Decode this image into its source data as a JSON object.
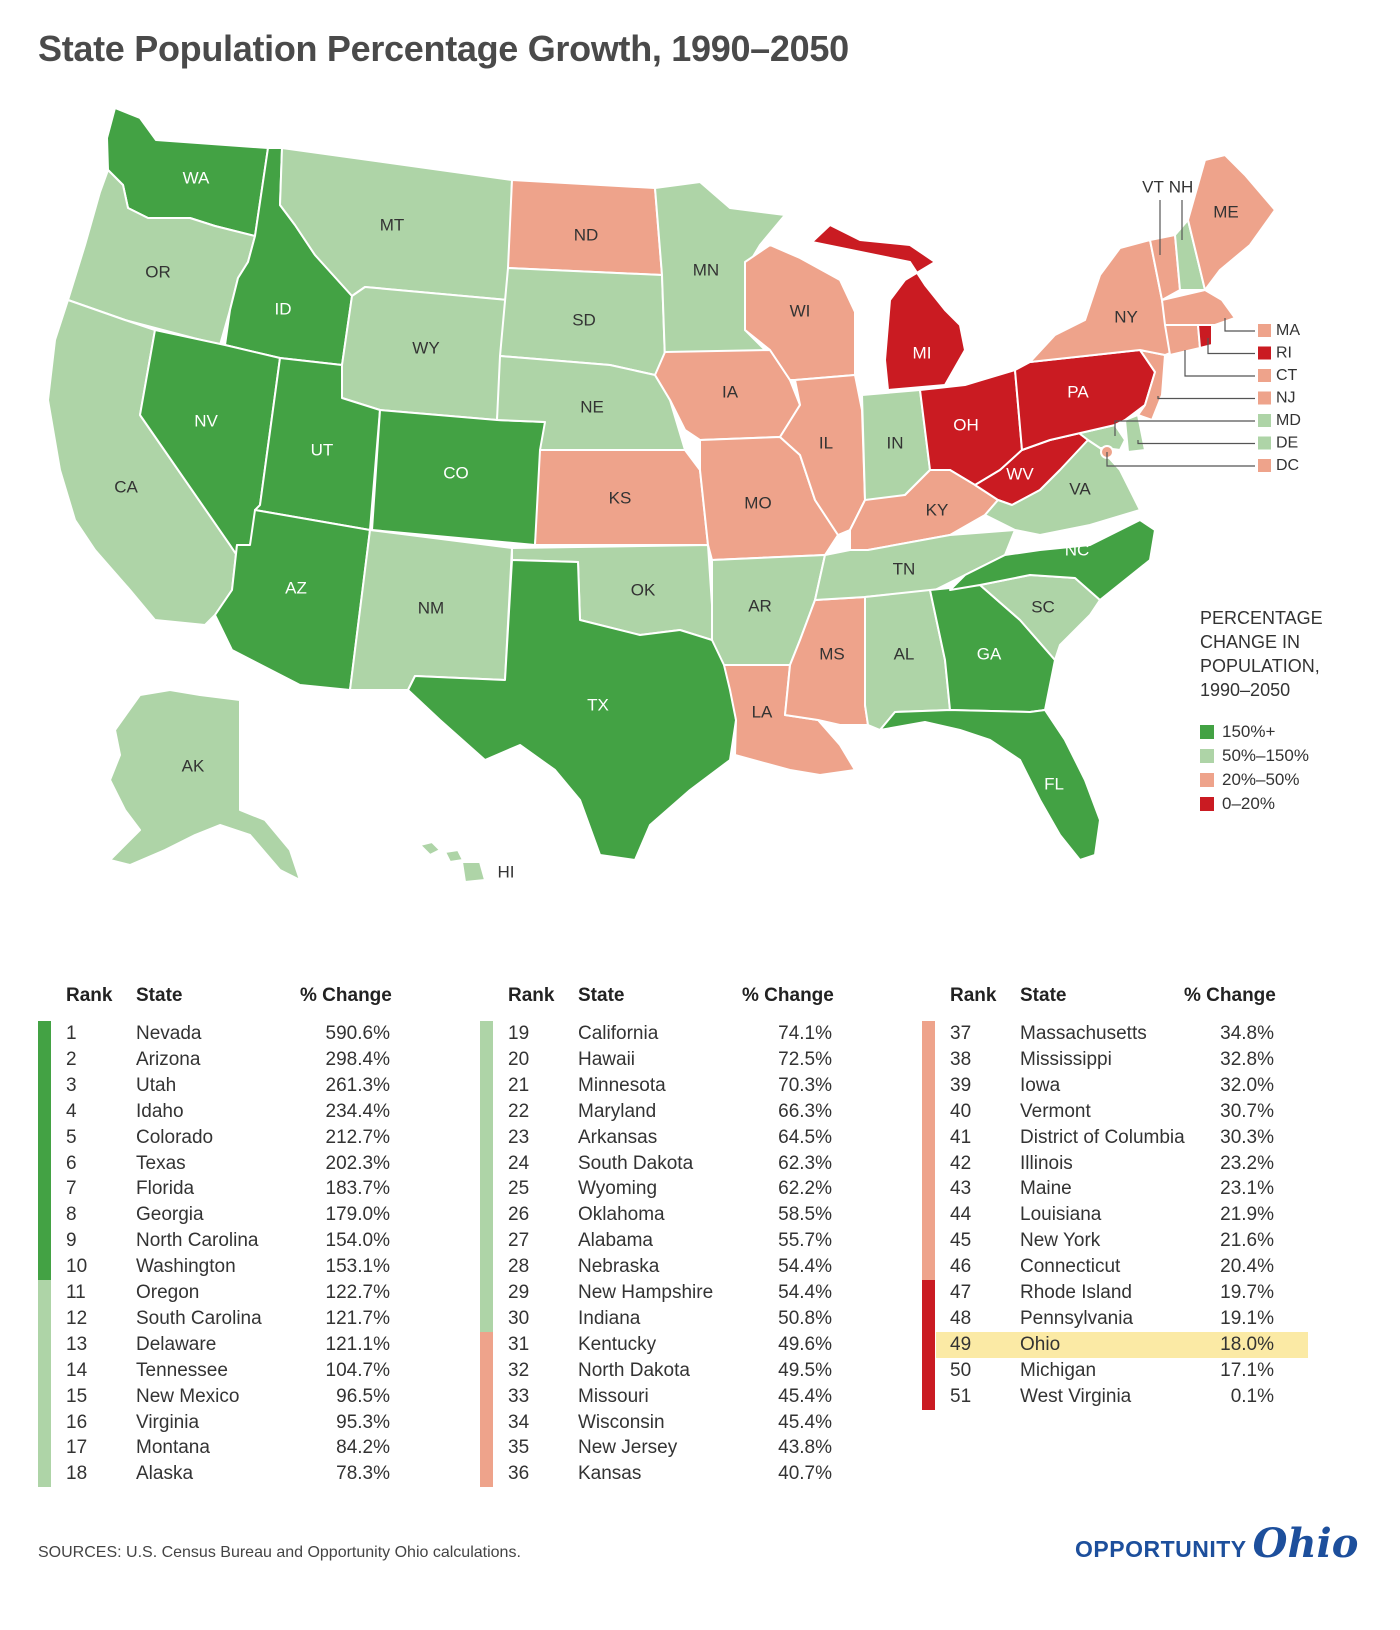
{
  "title": "State Population Percentage Growth, 1990–2050",
  "categories": {
    "c1": {
      "label": "150%+",
      "color": "#43a244"
    },
    "c2": {
      "label": "50%–150%",
      "color": "#aed4a7"
    },
    "c3": {
      "label": "20%–50%",
      "color": "#eea38b"
    },
    "c4": {
      "label": "0–20%",
      "color": "#ca1b22"
    }
  },
  "legend": {
    "title": "PERCENTAGE CHANGE IN POPULATION, 1990–2050",
    "title_lines": [
      "PERCENTAGE",
      "CHANGE IN",
      "POPULATION,",
      "1990–2050"
    ]
  },
  "map_states": [
    {
      "abbr": "WA",
      "cat": "c1"
    },
    {
      "abbr": "OR",
      "cat": "c2"
    },
    {
      "abbr": "CA",
      "cat": "c2"
    },
    {
      "abbr": "ID",
      "cat": "c1"
    },
    {
      "abbr": "NV",
      "cat": "c1"
    },
    {
      "abbr": "MT",
      "cat": "c2"
    },
    {
      "abbr": "WY",
      "cat": "c2"
    },
    {
      "abbr": "UT",
      "cat": "c1"
    },
    {
      "abbr": "AZ",
      "cat": "c1"
    },
    {
      "abbr": "CO",
      "cat": "c1"
    },
    {
      "abbr": "NM",
      "cat": "c2"
    },
    {
      "abbr": "ND",
      "cat": "c3"
    },
    {
      "abbr": "SD",
      "cat": "c2"
    },
    {
      "abbr": "NE",
      "cat": "c2"
    },
    {
      "abbr": "KS",
      "cat": "c3"
    },
    {
      "abbr": "OK",
      "cat": "c2"
    },
    {
      "abbr": "TX",
      "cat": "c1"
    },
    {
      "abbr": "MN",
      "cat": "c2"
    },
    {
      "abbr": "IA",
      "cat": "c3"
    },
    {
      "abbr": "MO",
      "cat": "c3"
    },
    {
      "abbr": "AR",
      "cat": "c2"
    },
    {
      "abbr": "LA",
      "cat": "c3"
    },
    {
      "abbr": "WI",
      "cat": "c3"
    },
    {
      "abbr": "IL",
      "cat": "c3"
    },
    {
      "abbr": "MS",
      "cat": "c3"
    },
    {
      "abbr": "MI",
      "cat": "c4"
    },
    {
      "abbr": "IN",
      "cat": "c2"
    },
    {
      "abbr": "KY",
      "cat": "c3"
    },
    {
      "abbr": "TN",
      "cat": "c2"
    },
    {
      "abbr": "AL",
      "cat": "c2"
    },
    {
      "abbr": "OH",
      "cat": "c4"
    },
    {
      "abbr": "WV",
      "cat": "c4"
    },
    {
      "abbr": "GA",
      "cat": "c1"
    },
    {
      "abbr": "FL",
      "cat": "c1"
    },
    {
      "abbr": "SC",
      "cat": "c2"
    },
    {
      "abbr": "NC",
      "cat": "c1"
    },
    {
      "abbr": "VA",
      "cat": "c2"
    },
    {
      "abbr": "PA",
      "cat": "c4"
    },
    {
      "abbr": "NY",
      "cat": "c3"
    },
    {
      "abbr": "VT",
      "cat": "c3"
    },
    {
      "abbr": "NH",
      "cat": "c2"
    },
    {
      "abbr": "ME",
      "cat": "c3"
    },
    {
      "abbr": "MA",
      "cat": "c3"
    },
    {
      "abbr": "RI",
      "cat": "c4"
    },
    {
      "abbr": "CT",
      "cat": "c3"
    },
    {
      "abbr": "NJ",
      "cat": "c3"
    },
    {
      "abbr": "MD",
      "cat": "c2"
    },
    {
      "abbr": "DE",
      "cat": "c2"
    },
    {
      "abbr": "DC",
      "cat": "c3"
    },
    {
      "abbr": "AK",
      "cat": "c2"
    },
    {
      "abbr": "HI",
      "cat": "c2"
    }
  ],
  "callouts": [
    {
      "abbr": "MA",
      "cat": "c3"
    },
    {
      "abbr": "RI",
      "cat": "c4"
    },
    {
      "abbr": "CT",
      "cat": "c3"
    },
    {
      "abbr": "NJ",
      "cat": "c3"
    },
    {
      "abbr": "MD",
      "cat": "c2"
    },
    {
      "abbr": "DE",
      "cat": "c2"
    },
    {
      "abbr": "DC",
      "cat": "c3"
    }
  ],
  "top_labels": [
    "VT",
    "NH"
  ],
  "table": {
    "headers": {
      "rank": "Rank",
      "state": "State",
      "change": "% Change"
    },
    "rows": [
      {
        "rank": "1",
        "state": "Nevada",
        "change": "590.6%",
        "cat": "c1"
      },
      {
        "rank": "2",
        "state": "Arizona",
        "change": "298.4%",
        "cat": "c1"
      },
      {
        "rank": "3",
        "state": "Utah",
        "change": "261.3%",
        "cat": "c1"
      },
      {
        "rank": "4",
        "state": "Idaho",
        "change": "234.4%",
        "cat": "c1"
      },
      {
        "rank": "5",
        "state": "Colorado",
        "change": "212.7%",
        "cat": "c1"
      },
      {
        "rank": "6",
        "state": "Texas",
        "change": "202.3%",
        "cat": "c1"
      },
      {
        "rank": "7",
        "state": "Florida",
        "change": "183.7%",
        "cat": "c1"
      },
      {
        "rank": "8",
        "state": "Georgia",
        "change": "179.0%",
        "cat": "c1"
      },
      {
        "rank": "9",
        "state": "North Carolina",
        "change": "154.0%",
        "cat": "c1"
      },
      {
        "rank": "10",
        "state": "Washington",
        "change": "153.1%",
        "cat": "c1"
      },
      {
        "rank": "11",
        "state": "Oregon",
        "change": "122.7%",
        "cat": "c2"
      },
      {
        "rank": "12",
        "state": "South Carolina",
        "change": "121.7%",
        "cat": "c2"
      },
      {
        "rank": "13",
        "state": "Delaware",
        "change": "121.1%",
        "cat": "c2"
      },
      {
        "rank": "14",
        "state": "Tennessee",
        "change": "104.7%",
        "cat": "c2"
      },
      {
        "rank": "15",
        "state": "New Mexico",
        "change": "96.5%",
        "cat": "c2"
      },
      {
        "rank": "16",
        "state": "Virginia",
        "change": "95.3%",
        "cat": "c2"
      },
      {
        "rank": "17",
        "state": "Montana",
        "change": "84.2%",
        "cat": "c2"
      },
      {
        "rank": "18",
        "state": "Alaska",
        "change": "78.3%",
        "cat": "c2"
      },
      {
        "rank": "19",
        "state": "California",
        "change": "74.1%",
        "cat": "c2"
      },
      {
        "rank": "20",
        "state": "Hawaii",
        "change": "72.5%",
        "cat": "c2"
      },
      {
        "rank": "21",
        "state": "Minnesota",
        "change": "70.3%",
        "cat": "c2"
      },
      {
        "rank": "22",
        "state": "Maryland",
        "change": "66.3%",
        "cat": "c2"
      },
      {
        "rank": "23",
        "state": "Arkansas",
        "change": "64.5%",
        "cat": "c2"
      },
      {
        "rank": "24",
        "state": "South Dakota",
        "change": "62.3%",
        "cat": "c2"
      },
      {
        "rank": "25",
        "state": "Wyoming",
        "change": "62.2%",
        "cat": "c2"
      },
      {
        "rank": "26",
        "state": "Oklahoma",
        "change": "58.5%",
        "cat": "c2"
      },
      {
        "rank": "27",
        "state": "Alabama",
        "change": "55.7%",
        "cat": "c2"
      },
      {
        "rank": "28",
        "state": "Nebraska",
        "change": "54.4%",
        "cat": "c2"
      },
      {
        "rank": "29",
        "state": "New Hampshire",
        "change": "54.4%",
        "cat": "c2"
      },
      {
        "rank": "30",
        "state": "Indiana",
        "change": "50.8%",
        "cat": "c2"
      },
      {
        "rank": "31",
        "state": "Kentucky",
        "change": "49.6%",
        "cat": "c3"
      },
      {
        "rank": "32",
        "state": "North Dakota",
        "change": "49.5%",
        "cat": "c3"
      },
      {
        "rank": "33",
        "state": "Missouri",
        "change": "45.4%",
        "cat": "c3"
      },
      {
        "rank": "34",
        "state": "Wisconsin",
        "change": "45.4%",
        "cat": "c3"
      },
      {
        "rank": "35",
        "state": "New Jersey",
        "change": "43.8%",
        "cat": "c3"
      },
      {
        "rank": "36",
        "state": "Kansas",
        "change": "40.7%",
        "cat": "c3"
      },
      {
        "rank": "37",
        "state": "Massachusetts",
        "change": "34.8%",
        "cat": "c3"
      },
      {
        "rank": "38",
        "state": "Mississippi",
        "change": "32.8%",
        "cat": "c3"
      },
      {
        "rank": "39",
        "state": "Iowa",
        "change": "32.0%",
        "cat": "c3"
      },
      {
        "rank": "40",
        "state": "Vermont",
        "change": "30.7%",
        "cat": "c3"
      },
      {
        "rank": "41",
        "state": "District of Columbia",
        "change": "30.3%",
        "cat": "c3"
      },
      {
        "rank": "42",
        "state": "Illinois",
        "change": "23.2%",
        "cat": "c3"
      },
      {
        "rank": "43",
        "state": "Maine",
        "change": "23.1%",
        "cat": "c3"
      },
      {
        "rank": "44",
        "state": "Louisiana",
        "change": "21.9%",
        "cat": "c3"
      },
      {
        "rank": "45",
        "state": "New York",
        "change": "21.6%",
        "cat": "c3"
      },
      {
        "rank": "46",
        "state": "Connecticut",
        "change": "20.4%",
        "cat": "c3"
      },
      {
        "rank": "47",
        "state": "Rhode Island",
        "change": "19.7%",
        "cat": "c4"
      },
      {
        "rank": "48",
        "state": "Pennsylvania",
        "change": "19.1%",
        "cat": "c4"
      },
      {
        "rank": "49",
        "state": "Ohio",
        "change": "18.0%",
        "cat": "c4",
        "highlight": true
      },
      {
        "rank": "50",
        "state": "Michigan",
        "change": "17.1%",
        "cat": "c4"
      },
      {
        "rank": "51",
        "state": "West Virginia",
        "change": "0.1%",
        "cat": "c4"
      }
    ]
  },
  "highlight_color": "#fbeaa5",
  "sources": "SOURCES: U.S. Census Bureau and Opportunity Ohio calculations.",
  "logo": {
    "word1": "OPPORTUNITY",
    "word2": "Ohio"
  }
}
